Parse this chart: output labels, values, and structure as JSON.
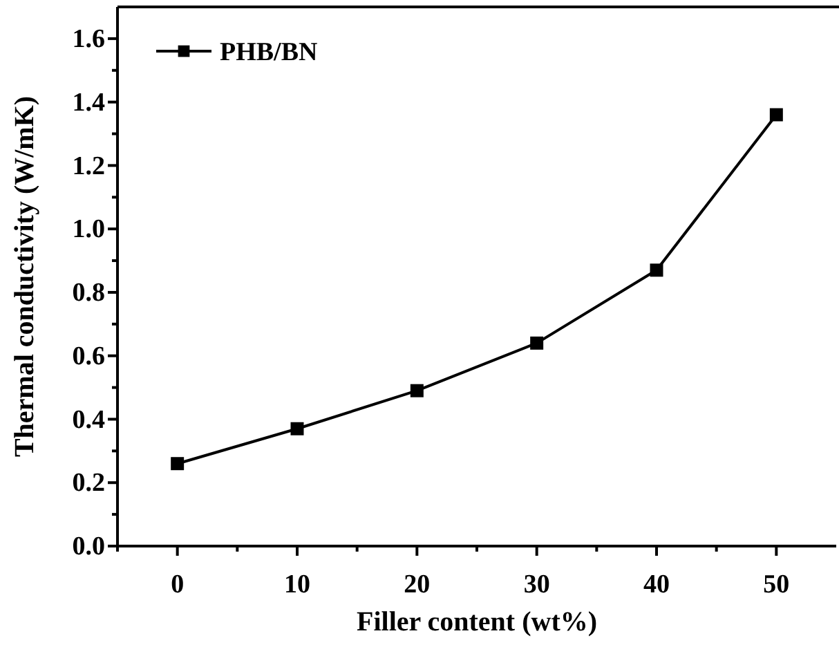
{
  "chart_data": {
    "type": "line",
    "xlabel": "Filler content (wt%)",
    "ylabel": "Thermal conductivity (W/mK)",
    "x": [
      0,
      10,
      20,
      30,
      40,
      50
    ],
    "series": [
      {
        "name": "PHB/BN",
        "color": "#000000",
        "values": [
          0.26,
          0.37,
          0.49,
          0.64,
          0.87,
          1.36
        ]
      }
    ],
    "xlim": [
      -5,
      55
    ],
    "xticks": [
      {
        "value": -5,
        "label": null
      },
      0,
      {
        "value": 5,
        "label": null
      },
      10,
      {
        "value": 15,
        "label": null
      },
      20,
      {
        "value": 25,
        "label": null
      },
      30,
      {
        "value": 35,
        "label": null
      },
      40,
      {
        "value": 45,
        "label": null
      },
      50
    ],
    "ylim": [
      0,
      1.7
    ],
    "yticks": [
      {
        "value": 0,
        "label": "0.0"
      },
      {
        "value": 0.1,
        "label": null
      },
      {
        "value": 0.2,
        "label": "0.2"
      },
      {
        "value": 0.3,
        "label": null
      },
      {
        "value": 0.4,
        "label": "0.4"
      },
      {
        "value": 0.5,
        "label": null
      },
      {
        "value": 0.6,
        "label": "0.6"
      },
      {
        "value": 0.7,
        "label": null
      },
      {
        "value": 0.8,
        "label": "0.8"
      },
      {
        "value": 0.9,
        "label": null
      },
      {
        "value": 1.0,
        "label": "1.0"
      },
      {
        "value": 1.1,
        "label": null
      },
      {
        "value": 1.2,
        "label": "1.2"
      },
      {
        "value": 1.3,
        "label": null
      },
      {
        "value": 1.4,
        "label": "1.4"
      },
      {
        "value": 1.5,
        "label": null
      },
      {
        "value": 1.6,
        "label": "1.6"
      }
    ],
    "marker": "square",
    "line_style": "solid",
    "legend": "top left",
    "grid": false
  }
}
